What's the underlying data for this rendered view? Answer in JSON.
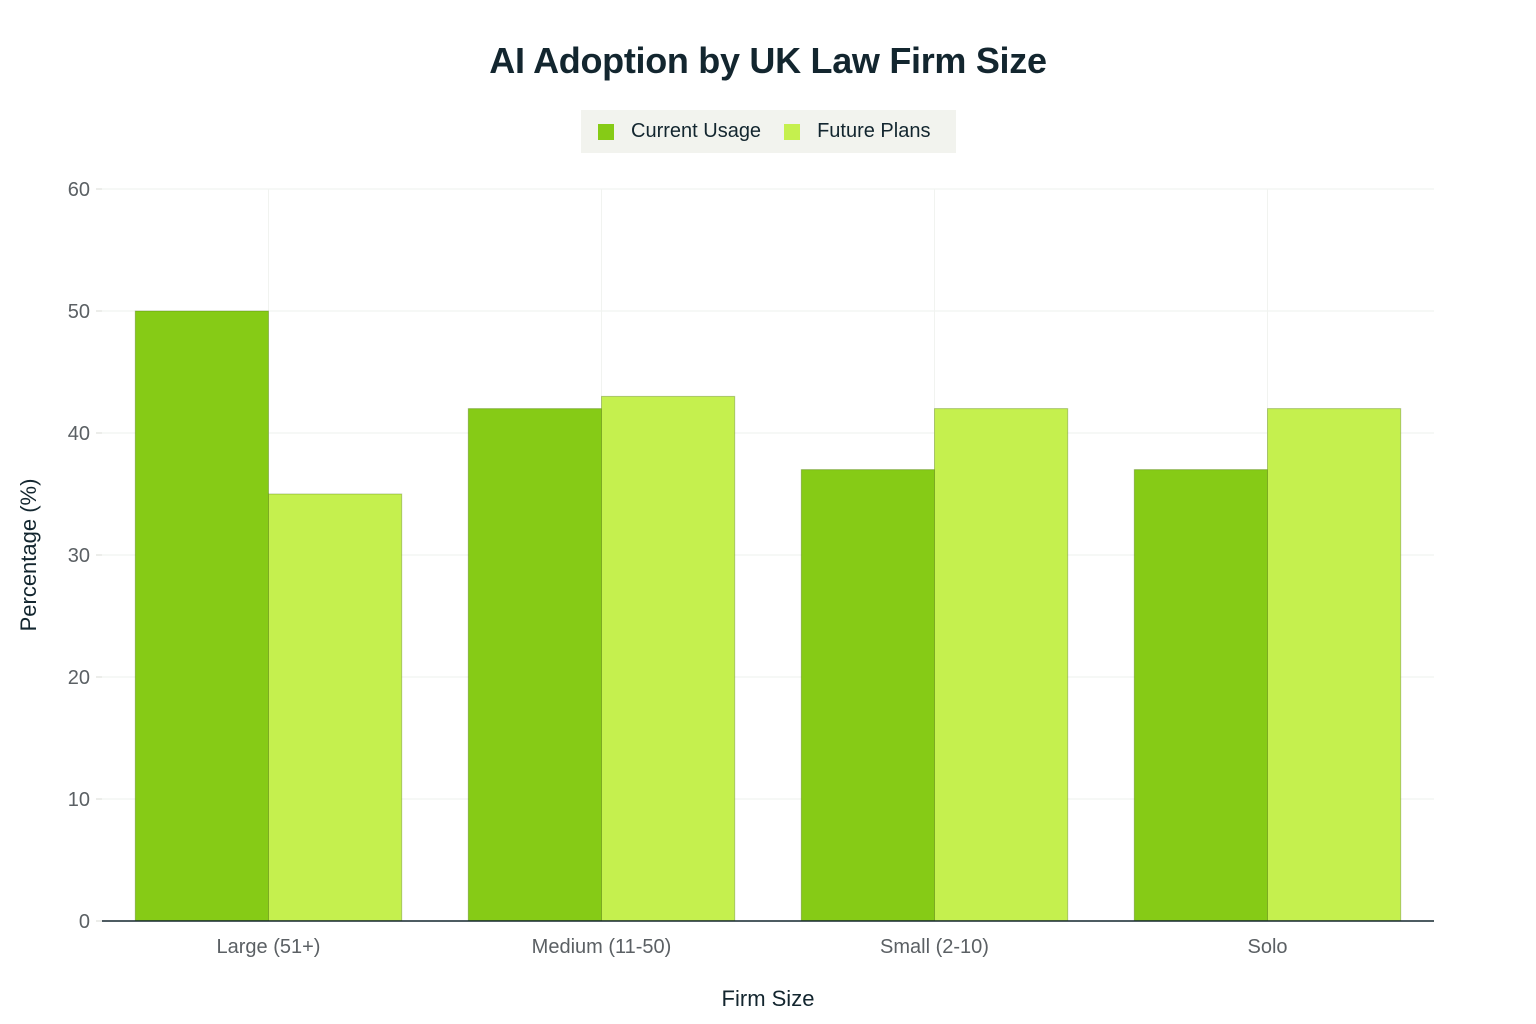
{
  "chart_data": {
    "type": "bar",
    "title": "AI Adoption by UK Law Firm Size",
    "xlabel": "Firm Size",
    "ylabel": "Percentage (%)",
    "categories": [
      "Large (51+)",
      "Medium (11-50)",
      "Small (2-10)",
      "Solo"
    ],
    "series": [
      {
        "name": "Current Usage",
        "color": "#86cb16",
        "values": [
          50,
          42,
          37,
          37
        ]
      },
      {
        "name": "Future Plans",
        "color": "#c5f04e",
        "values": [
          35,
          43,
          42,
          42
        ]
      }
    ],
    "ylim": [
      0,
      60
    ],
    "yticks": [
      0,
      10,
      20,
      30,
      40,
      50,
      60
    ],
    "grid": true,
    "legend_position": "top-center"
  }
}
